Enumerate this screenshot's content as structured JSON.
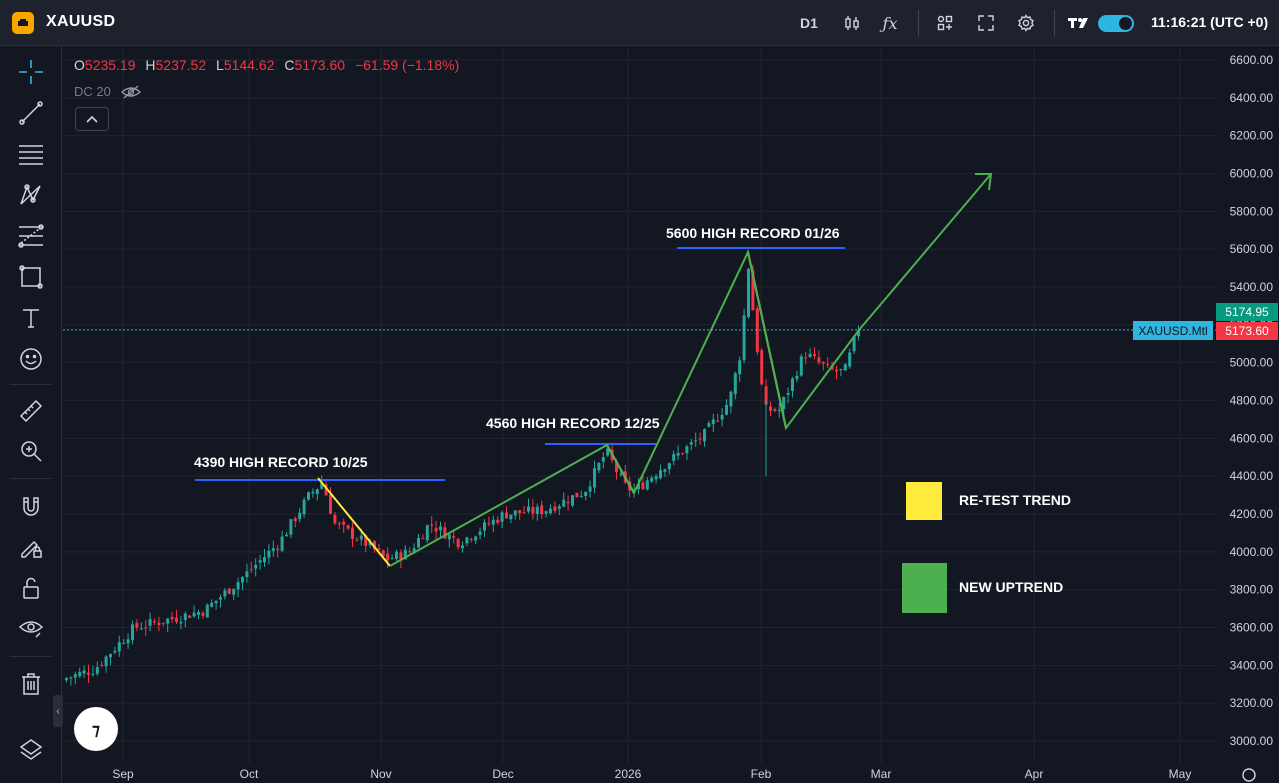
{
  "header": {
    "symbol": "XAUUSD",
    "timeframe": "D1",
    "clock": "11:16:21 (UTC +0)",
    "icons": [
      "xauusd-logo-icon",
      "candles-icon",
      "indicators-fx-icon",
      "templates-icon",
      "fullscreen-icon",
      "settings-gear-icon",
      "tradingview-logo-icon",
      "theme-toggle"
    ]
  },
  "legend": {
    "open_key": "O",
    "open": "5235.19",
    "high_key": "H",
    "high": "5237.52",
    "low_key": "L",
    "low": "5144.62",
    "close_key": "C",
    "close": "5173.60",
    "change": "−61.59 (−1.18%)",
    "indicator": "DC 20"
  },
  "price_tags": {
    "upper": "5174.95",
    "last": "5173.60",
    "series_label": "XAUUSD.Mtl"
  },
  "annotations": {
    "r1": "4390  HIGH RECORD  10/25",
    "r2": "4560 HIGH RECORD  12/25",
    "r3": "5600  HIGH RECORD 01/26",
    "retest": "RE-TEST TREND",
    "uptrend": "NEW UPTREND"
  },
  "colors": {
    "background": "#131722",
    "up": "#26a69a",
    "down": "#f23645",
    "retest": "#ffeb3b",
    "uptrend": "#4caf50",
    "record_line": "#2962ff",
    "accent": "#2fb6e0"
  },
  "toolbar": {
    "tools": [
      "crosshair-icon",
      "trend-line-icon",
      "horizontal-lines-icon",
      "pattern-icon",
      "fib-icon",
      "rectangle-icon",
      "text-icon",
      "emoji-icon",
      "ruler-icon",
      "zoom-in-icon",
      "magnet-icon",
      "lock-drawing-icon",
      "unlock-icon",
      "eye-icon",
      "trash-icon",
      "layers-icon"
    ]
  },
  "chart_data": {
    "type": "candlestick",
    "symbol": "XAUUSD",
    "timeframe": "D1",
    "y_ticks": [
      3000,
      3200,
      3400,
      3600,
      3800,
      4000,
      4200,
      4400,
      4600,
      4800,
      5000,
      5200,
      5400,
      5600,
      5800,
      6000,
      6200,
      6400,
      6600
    ],
    "y_tick_labels": [
      "3000.00",
      "3200.00",
      "3400.00",
      "3600.00",
      "3800.00",
      "4000.00",
      "4200.00",
      "4400.00",
      "4600.00",
      "4800.00",
      "5000.00",
      "5200.00",
      "5400.00",
      "5600.00",
      "5800.00",
      "6000.00",
      "6200.00",
      "6400.00",
      "6600.00"
    ],
    "ylim": [
      2900,
      6700
    ],
    "x_labels": [
      "Sep",
      "Oct",
      "Nov",
      "Dec",
      "2026",
      "Feb",
      "Mar",
      "Apr",
      "May"
    ],
    "approx_closes": [
      [
        "Aug 25",
        3330
      ],
      [
        "Sep 1",
        3420
      ],
      [
        "Sep 8",
        3600
      ],
      [
        "Sep 15",
        3650
      ],
      [
        "Sep 22",
        3700
      ],
      [
        "Sep 29",
        3850
      ],
      [
        "Oct 6",
        4000
      ],
      [
        "Oct 13",
        4250
      ],
      [
        "Oct 17",
        4360
      ],
      [
        "Oct 22",
        4100
      ],
      [
        "Oct 28",
        3950
      ],
      [
        "Nov 3",
        4000
      ],
      [
        "Nov 10",
        4100
      ],
      [
        "Nov 17",
        4050
      ],
      [
        "Nov 24",
        4150
      ],
      [
        "Dec 1",
        4220
      ],
      [
        "Dec 8",
        4250
      ],
      [
        "Dec 15",
        4300
      ],
      [
        "Dec 22",
        4520
      ],
      [
        "Dec 29",
        4320
      ],
      [
        "Jan 5",
        4450
      ],
      [
        "Jan 12",
        4600
      ],
      [
        "Jan 19",
        4750
      ],
      [
        "Jan 26",
        5200
      ],
      [
        "Jan 29",
        5500
      ],
      [
        "Feb 2",
        4750
      ],
      [
        "Feb 5",
        4900
      ],
      [
        "Feb 10",
        5050
      ],
      [
        "Feb 16",
        4950
      ],
      [
        "Feb 23",
        5173.6
      ]
    ],
    "last_price": 5173.6,
    "annotations": [
      {
        "text": "4390  HIGH RECORD  10/25",
        "level": 4390
      },
      {
        "text": "4560 HIGH RECORD  12/25",
        "level": 4570
      },
      {
        "text": "5600  HIGH RECORD 01/26",
        "level": 5610
      }
    ],
    "legend_entries": [
      "RE-TEST TREND",
      "NEW UPTREND"
    ]
  }
}
